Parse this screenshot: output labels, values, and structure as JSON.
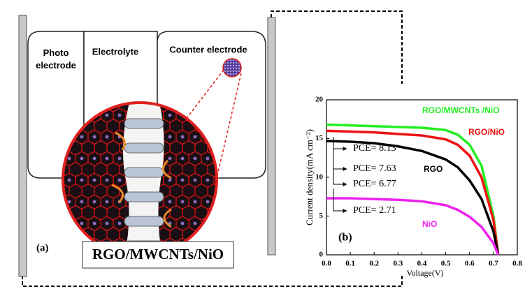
{
  "diagram": {
    "boxes": [
      "Photo electrode",
      "Electrolyte",
      "Counter electrode"
    ],
    "panel_label": "(a)",
    "caption": "RGO/MWCNTs/NiO"
  },
  "chart_data": {
    "type": "line",
    "panel_label": "(b)",
    "x_label": "Voltage(V)",
    "y_label": "Current density(mA cm⁻²)",
    "x": [
      0,
      0.1,
      0.2,
      0.3,
      0.4,
      0.5,
      0.55,
      0.6,
      0.65,
      0.7,
      0.72
    ],
    "series": [
      {
        "name": "RGO/MWCNTs /NiO",
        "color": "#22ee22",
        "values": [
          16.8,
          16.7,
          16.6,
          16.5,
          16.4,
          16.1,
          15.5,
          14.2,
          11.5,
          5,
          0
        ]
      },
      {
        "name": "RGO/NiO",
        "color": "#ee1111",
        "values": [
          16.0,
          15.9,
          15.8,
          15.6,
          15.4,
          14.9,
          14.2,
          12.8,
          10,
          4.5,
          0
        ]
      },
      {
        "name": "RGO",
        "color": "#000000",
        "values": [
          14.7,
          14.6,
          14.4,
          14.0,
          13.4,
          12.3,
          11.3,
          9.6,
          7.2,
          3,
          0
        ]
      },
      {
        "name": "NiO",
        "color": "#ee22ee",
        "values": [
          7.3,
          7.3,
          7.2,
          7.1,
          6.9,
          6.4,
          5.8,
          4.9,
          3.6,
          1.5,
          0
        ]
      }
    ],
    "annotations": [
      "PCE= 8.13",
      "PCE= 7.63",
      "PCE= 6.77",
      "PCE= 2.71"
    ],
    "xlim": [
      0,
      0.8
    ],
    "ylim": [
      0,
      20
    ],
    "xticks": [
      {
        "value": 0,
        "label": "0.0"
      },
      0.1,
      0.2,
      0.3,
      0.4,
      0.5,
      0.6,
      0.7,
      0.8
    ],
    "yticks": [
      0,
      5,
      10,
      15,
      20
    ]
  }
}
